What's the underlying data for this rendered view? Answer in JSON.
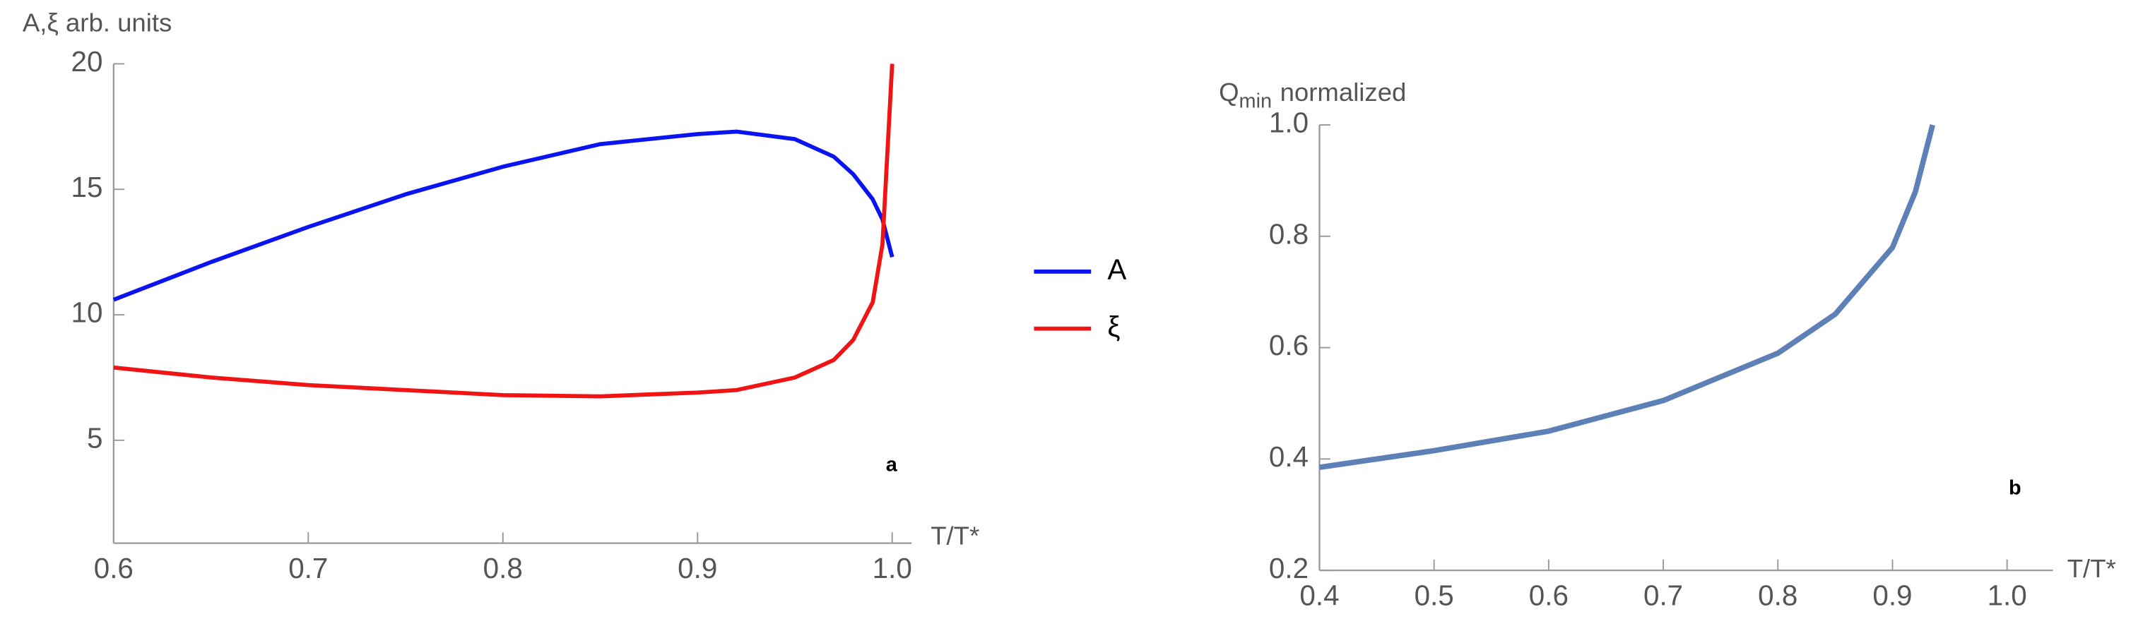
{
  "chart_data": [
    {
      "type": "line",
      "y_label": "A,ξ arb. units",
      "x_label": "T/T*",
      "annotation": "a",
      "x": [
        0.6,
        0.65,
        0.7,
        0.75,
        0.8,
        0.85,
        0.9,
        0.92,
        0.95,
        0.97,
        0.98,
        0.99,
        0.995,
        1.0
      ],
      "series": [
        {
          "name": "A",
          "color": "#0a14f0",
          "values": [
            10.6,
            12.1,
            13.5,
            14.8,
            15.9,
            16.8,
            17.2,
            17.3,
            17.0,
            16.3,
            15.6,
            14.6,
            13.8,
            12.3
          ]
        },
        {
          "name": "ξ",
          "color": "#f01414",
          "values": [
            7.9,
            7.5,
            7.2,
            7.0,
            6.8,
            6.75,
            6.9,
            7.0,
            7.5,
            8.2,
            9.0,
            10.5,
            12.8,
            20
          ]
        }
      ],
      "xlim": [
        0.6,
        1.01
      ],
      "ylim": [
        0.9,
        20
      ],
      "xticks": [
        0.6,
        0.7,
        0.8,
        0.9,
        {
          "value": 1,
          "label": "1.0"
        }
      ],
      "yticks": [
        5,
        10,
        15,
        20
      ],
      "legend": "right"
    },
    {
      "type": "line",
      "y_label": {
        "symbol": "Q",
        "subscript": "min",
        "text": "normalized"
      },
      "x_label": "T/T*",
      "annotation": "b",
      "x": [
        0.4,
        0.5,
        0.6,
        0.7,
        0.8,
        0.85,
        0.9,
        0.92,
        0.935
      ],
      "series": [
        {
          "color": "#5d80b6",
          "values": [
            0.385,
            0.415,
            0.45,
            0.505,
            0.59,
            0.66,
            0.78,
            0.88,
            1.0
          ]
        }
      ],
      "xlim": [
        0.4,
        1.04
      ],
      "ylim": [
        0.2,
        1.0
      ],
      "xticks": [
        0.4,
        0.5,
        0.6,
        0.7,
        0.8,
        0.9,
        {
          "value": 1,
          "label": "1.0"
        }
      ],
      "yticks": [
        0.2,
        0.4,
        0.6,
        0.8,
        {
          "value": 1,
          "label": "1.0"
        }
      ]
    }
  ]
}
